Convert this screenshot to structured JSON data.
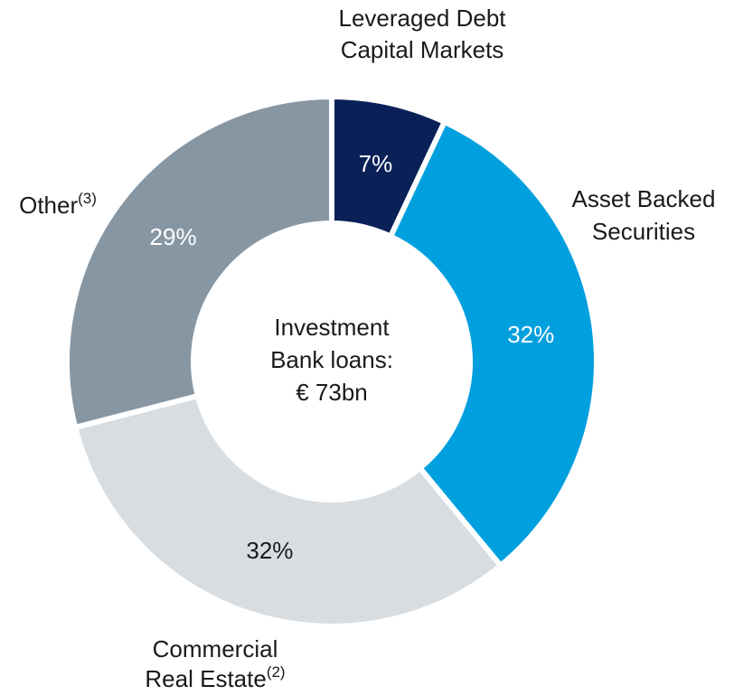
{
  "chart_data": {
    "type": "donut",
    "categories": [
      [
        "Leveraged Debt",
        "Capital Markets"
      ],
      [
        "Asset Backed",
        "Securities"
      ],
      [
        "Commercial",
        "Real Estate"
      ],
      [
        "Other"
      ]
    ],
    "footnotes": [
      null,
      null,
      "(2)",
      "(3)"
    ],
    "values": [
      7,
      32,
      32,
      29
    ],
    "value_labels": [
      "7%",
      "32%",
      "32%",
      "29%"
    ],
    "colors": [
      "#0a2158",
      "#00a0df",
      "#d7dde1",
      "#8796a3"
    ],
    "center_text": [
      "Investment",
      "Bank loans:",
      "€ 73bn"
    ]
  }
}
